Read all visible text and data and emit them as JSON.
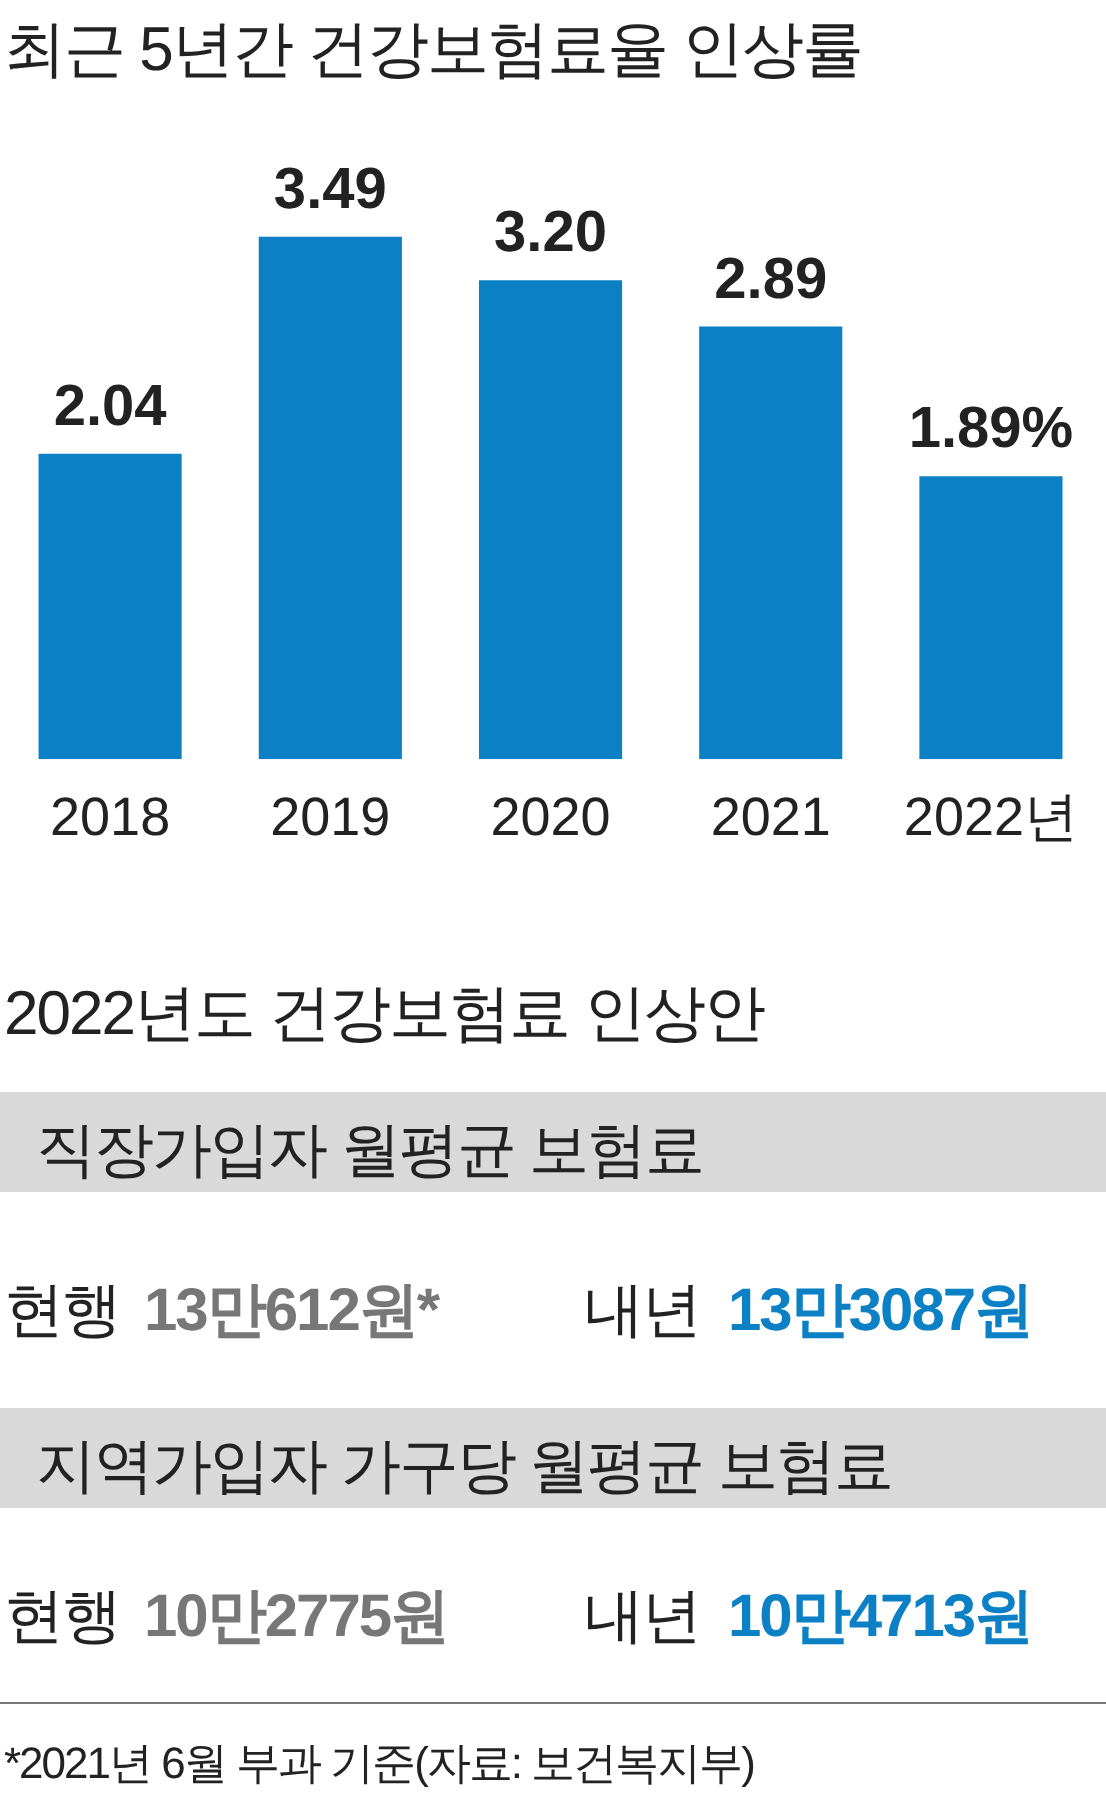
{
  "chart_data": [
    {
      "type": "bar",
      "title": "최근 5년간 건강보험료율 인상률",
      "categories": [
        "2018",
        "2019",
        "2020",
        "2021",
        "2022년"
      ],
      "values": [
        2.04,
        3.49,
        3.2,
        2.89,
        1.89
      ],
      "value_labels": [
        "2.04",
        "3.49",
        "3.20",
        "2.89",
        "1.89%"
      ],
      "color": "#0b80c5",
      "grid": false,
      "legend": false
    },
    {
      "type": "other",
      "title": "2022년도 건강보험료 인상안",
      "annotations": [
        "직장가입자 월평균 보험료",
        "현행",
        "13만612원*",
        "내년",
        "13만3087원",
        "지역가입자 가구당 월평균 보험료",
        "현행",
        "10만2775원",
        "내년",
        "10만4713원",
        "*2021년 6월 부과 기준(자료: 보건복지부)"
      ]
    }
  ]
}
